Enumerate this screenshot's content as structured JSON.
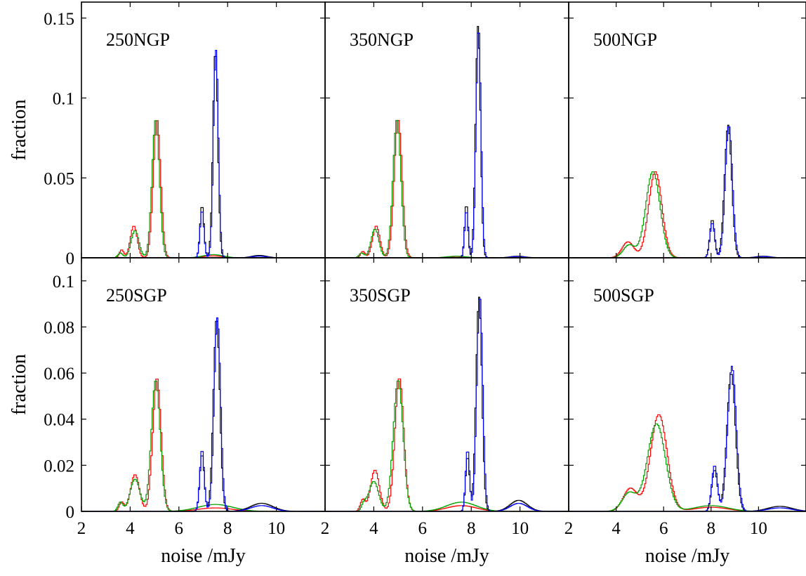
{
  "chart_data": {
    "type": "line",
    "layout": "2x3 panel grid",
    "xlabel": "noise /mJy",
    "ylabel": "fraction",
    "xlim": [
      2,
      12
    ],
    "x_ticks": [
      2,
      4,
      6,
      8,
      10
    ],
    "row_ylim": [
      [
        0,
        0.16
      ],
      [
        0,
        0.11
      ]
    ],
    "row_ticks": [
      [
        {
          "v": 0,
          "label": "0"
        },
        {
          "v": 0.05,
          "label": "0.05"
        },
        {
          "v": 0.1,
          "label": "0.1"
        },
        {
          "v": 0.15,
          "label": "0.15"
        }
      ],
      [
        {
          "v": 0,
          "label": "0"
        },
        {
          "v": 0.02,
          "label": "0.02"
        },
        {
          "v": 0.04,
          "label": "0.04"
        },
        {
          "v": 0.06,
          "label": "0.06"
        },
        {
          "v": 0.08,
          "label": "0.08"
        },
        {
          "v": 0.1,
          "label": "0.1"
        }
      ]
    ],
    "series_colors": {
      "black": "#000000",
      "blue": "#0000ff",
      "red": "#ff0000",
      "green": "#00a000"
    },
    "panels": [
      {
        "label": "250NGP",
        "row": 0,
        "col": 0,
        "series": [
          {
            "color": "red",
            "peaks": [
              [
                3.65,
                0.005,
                0.09
              ],
              [
                4.15,
                0.02,
                0.14
              ],
              [
                5.1,
                0.087,
                0.15
              ],
              [
                7.4,
                0.0012,
                0.4
              ]
            ]
          },
          {
            "color": "green",
            "peaks": [
              [
                3.6,
                0.003,
                0.1
              ],
              [
                4.2,
                0.017,
                0.16
              ],
              [
                5.05,
                0.087,
                0.15
              ],
              [
                7.4,
                0.002,
                0.4
              ]
            ]
          },
          {
            "color": "black",
            "peaks": [
              [
                6.95,
                0.033,
                0.08
              ],
              [
                7.5,
                0.13,
                0.1
              ],
              [
                9.3,
                0.0015,
                0.3
              ]
            ]
          },
          {
            "color": "blue",
            "peaks": [
              [
                6.95,
                0.03,
                0.08
              ],
              [
                7.52,
                0.13,
                0.1
              ],
              [
                9.3,
                0.001,
                0.3
              ]
            ]
          }
        ]
      },
      {
        "label": "350NGP",
        "row": 0,
        "col": 1,
        "series": [
          {
            "color": "red",
            "peaks": [
              [
                3.55,
                0.004,
                0.09
              ],
              [
                4.1,
                0.02,
                0.15
              ],
              [
                5.0,
                0.087,
                0.16
              ],
              [
                7.4,
                0.0008,
                0.4
              ]
            ]
          },
          {
            "color": "green",
            "peaks": [
              [
                3.5,
                0.003,
                0.1
              ],
              [
                4.05,
                0.018,
                0.16
              ],
              [
                4.95,
                0.087,
                0.16
              ],
              [
                7.4,
                0.001,
                0.4
              ]
            ]
          },
          {
            "color": "black",
            "peaks": [
              [
                7.8,
                0.034,
                0.07
              ],
              [
                8.28,
                0.145,
                0.1
              ],
              [
                9.9,
                0.001,
                0.3
              ]
            ]
          },
          {
            "color": "blue",
            "peaks": [
              [
                7.8,
                0.03,
                0.07
              ],
              [
                8.3,
                0.145,
                0.1
              ],
              [
                9.9,
                0.0008,
                0.3
              ]
            ]
          }
        ]
      },
      {
        "label": "500NGP",
        "row": 0,
        "col": 2,
        "series": [
          {
            "color": "red",
            "peaks": [
              [
                4.5,
                0.01,
                0.25
              ],
              [
                5.65,
                0.054,
                0.28
              ]
            ]
          },
          {
            "color": "green",
            "peaks": [
              [
                4.55,
                0.008,
                0.25
              ],
              [
                5.55,
                0.054,
                0.3
              ]
            ]
          },
          {
            "color": "black",
            "peaks": [
              [
                8.05,
                0.024,
                0.1
              ],
              [
                8.72,
                0.083,
                0.15
              ],
              [
                10.2,
                0.001,
                0.3
              ]
            ]
          },
          {
            "color": "blue",
            "peaks": [
              [
                8.05,
                0.022,
                0.1
              ],
              [
                8.75,
                0.083,
                0.15
              ],
              [
                10.2,
                0.0008,
                0.3
              ]
            ]
          }
        ]
      },
      {
        "label": "250SGP",
        "row": 1,
        "col": 0,
        "series": [
          {
            "color": "red",
            "peaks": [
              [
                3.65,
                0.004,
                0.1
              ],
              [
                4.2,
                0.016,
                0.18
              ],
              [
                5.1,
                0.058,
                0.17
              ],
              [
                7.5,
                0.0015,
                0.7
              ]
            ]
          },
          {
            "color": "green",
            "peaks": [
              [
                3.6,
                0.004,
                0.1
              ],
              [
                4.2,
                0.014,
                0.2
              ],
              [
                5.05,
                0.057,
                0.18
              ],
              [
                7.5,
                0.003,
                0.7
              ]
            ]
          },
          {
            "color": "black",
            "peaks": [
              [
                6.95,
                0.025,
                0.09
              ],
              [
                7.55,
                0.084,
                0.13
              ],
              [
                9.4,
                0.0035,
                0.45
              ]
            ]
          },
          {
            "color": "blue",
            "peaks": [
              [
                6.95,
                0.027,
                0.09
              ],
              [
                7.58,
                0.084,
                0.13
              ],
              [
                9.4,
                0.0025,
                0.45
              ]
            ]
          }
        ]
      },
      {
        "label": "350SGP",
        "row": 1,
        "col": 1,
        "series": [
          {
            "color": "red",
            "peaks": [
              [
                3.55,
                0.005,
                0.1
              ],
              [
                4.05,
                0.018,
                0.18
              ],
              [
                5.05,
                0.058,
                0.18
              ],
              [
                7.6,
                0.0025,
                0.6
              ]
            ]
          },
          {
            "color": "green",
            "peaks": [
              [
                3.6,
                0.003,
                0.1
              ],
              [
                4.0,
                0.013,
                0.2
              ],
              [
                5.0,
                0.057,
                0.2
              ],
              [
                7.6,
                0.004,
                0.6
              ]
            ]
          },
          {
            "color": "black",
            "peaks": [
              [
                7.85,
                0.024,
                0.08
              ],
              [
                8.32,
                0.093,
                0.12
              ],
              [
                9.95,
                0.0048,
                0.35
              ]
            ]
          },
          {
            "color": "blue",
            "peaks": [
              [
                7.85,
                0.027,
                0.08
              ],
              [
                8.35,
                0.094,
                0.12
              ],
              [
                9.95,
                0.0035,
                0.35
              ]
            ]
          }
        ]
      },
      {
        "label": "500SGP",
        "row": 1,
        "col": 2,
        "series": [
          {
            "color": "red",
            "peaks": [
              [
                4.6,
                0.01,
                0.3
              ],
              [
                5.8,
                0.042,
                0.35
              ],
              [
                8.0,
                0.0018,
                0.7
              ]
            ]
          },
          {
            "color": "green",
            "peaks": [
              [
                4.55,
                0.008,
                0.3
              ],
              [
                5.7,
                0.038,
                0.38
              ],
              [
                8.0,
                0.0025,
                0.7
              ]
            ]
          },
          {
            "color": "black",
            "peaks": [
              [
                8.15,
                0.018,
                0.12
              ],
              [
                8.85,
                0.06,
                0.18
              ],
              [
                10.9,
                0.0022,
                0.5
              ]
            ]
          },
          {
            "color": "blue",
            "peaks": [
              [
                8.15,
                0.02,
                0.12
              ],
              [
                8.88,
                0.063,
                0.18
              ],
              [
                10.9,
                0.0015,
                0.5
              ]
            ]
          }
        ]
      }
    ]
  }
}
